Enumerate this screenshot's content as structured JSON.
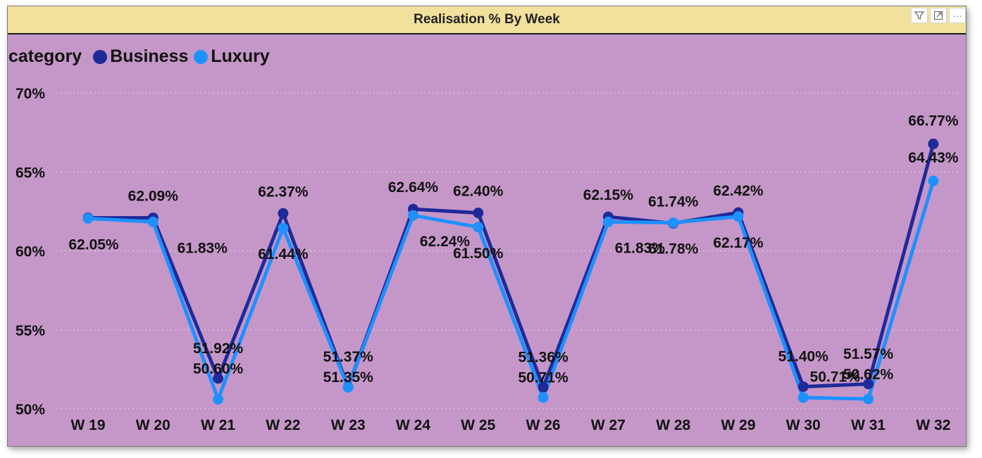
{
  "visual": {
    "title": "Realisation % By Week",
    "toolbar": {
      "filter_icon": "filter-icon",
      "focus_icon": "focus-mode-icon",
      "more_icon": "more-options-icon",
      "more_label": "···"
    }
  },
  "chart_data": {
    "type": "line",
    "title": "Realisation % By Week",
    "legend_title": "category",
    "legend_position": "top-left",
    "categories": [
      "W 19",
      "W 20",
      "W 21",
      "W 22",
      "W 23",
      "W 24",
      "W 25",
      "W 26",
      "W 27",
      "W 28",
      "W 29",
      "W 30",
      "W 31",
      "W 32"
    ],
    "ylim": [
      50,
      70
    ],
    "yticks": [
      {
        "value": 50,
        "label": "50%"
      },
      {
        "value": 55,
        "label": "55%"
      },
      {
        "value": 60,
        "label": "60%"
      },
      {
        "value": 65,
        "label": "65%"
      },
      {
        "value": 70,
        "label": "70%"
      }
    ],
    "grid": true,
    "background_color": "#c597c8",
    "header_color": "#f1e19c",
    "series": [
      {
        "name": "Business",
        "color": "#1f2a99",
        "values": [
          62.09,
          62.09,
          51.92,
          62.37,
          51.37,
          62.64,
          62.4,
          51.36,
          62.15,
          61.74,
          62.42,
          51.4,
          51.57,
          66.77
        ],
        "labels": [
          "",
          "62.09%",
          "51.92%",
          "62.37%",
          "51.37%",
          "62.64%",
          "62.40%",
          "51.36%",
          "62.15%",
          "61.74%",
          "62.42%",
          "51.40%",
          "51.57%",
          "66.77%"
        ]
      },
      {
        "name": "Luxury",
        "color": "#1e90ff",
        "values": [
          62.05,
          61.83,
          50.6,
          61.44,
          51.35,
          62.24,
          61.5,
          50.71,
          61.83,
          61.78,
          62.17,
          50.71,
          50.62,
          64.43
        ],
        "labels": [
          "62.05%",
          "61.83%",
          "50.60%",
          "61.44%",
          "51.35%",
          "62.24%",
          "61.50%",
          "50.71%",
          "61.83%",
          "61.78%",
          "62.17%",
          "50.71%",
          "50.62%",
          "64.43%"
        ]
      }
    ]
  }
}
